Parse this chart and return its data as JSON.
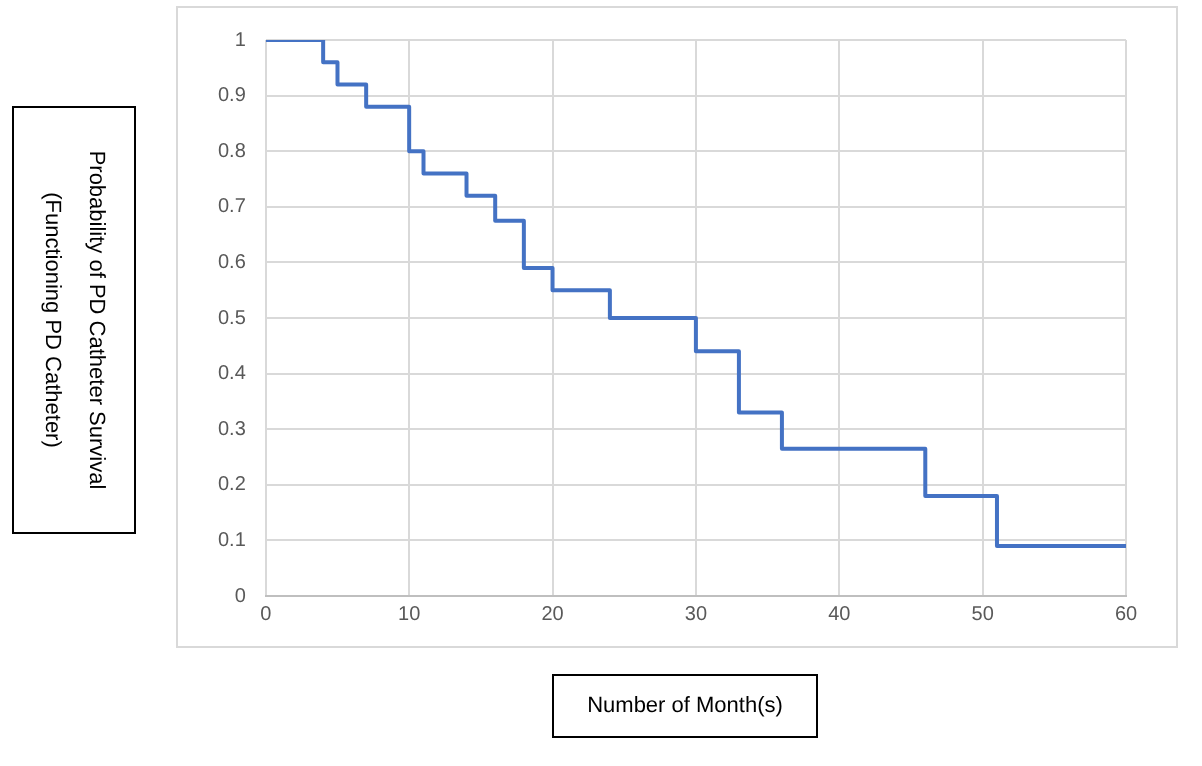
{
  "chart_data": {
    "type": "step",
    "xlabel": "Number of Month(s)",
    "ylabel": "Probability of PD Catheter Survival (Functioning PD Catheter)",
    "x": [
      0,
      4,
      5,
      7,
      10,
      11,
      14,
      16,
      18,
      20,
      24,
      30,
      33,
      36,
      46,
      51,
      60
    ],
    "series": [
      {
        "color": "#4472c4",
        "values": [
          1,
          0.96,
          0.92,
          0.88,
          0.8,
          0.76,
          0.72,
          0.675,
          0.59,
          0.55,
          0.5,
          0.44,
          0.33,
          0.265,
          0.18,
          0.09,
          0.09
        ]
      }
    ],
    "xlim": [
      0,
      60
    ],
    "xticks": [
      0,
      10,
      20,
      30,
      40,
      50,
      60
    ],
    "ylim": [
      0,
      1
    ],
    "yticks": [
      0,
      0.1,
      0.2,
      0.3,
      0.4,
      0.5,
      0.6,
      0.7,
      0.8,
      0.9,
      1
    ],
    "grid": true,
    "legend": false,
    "marker": "none",
    "line_style": "solid"
  }
}
